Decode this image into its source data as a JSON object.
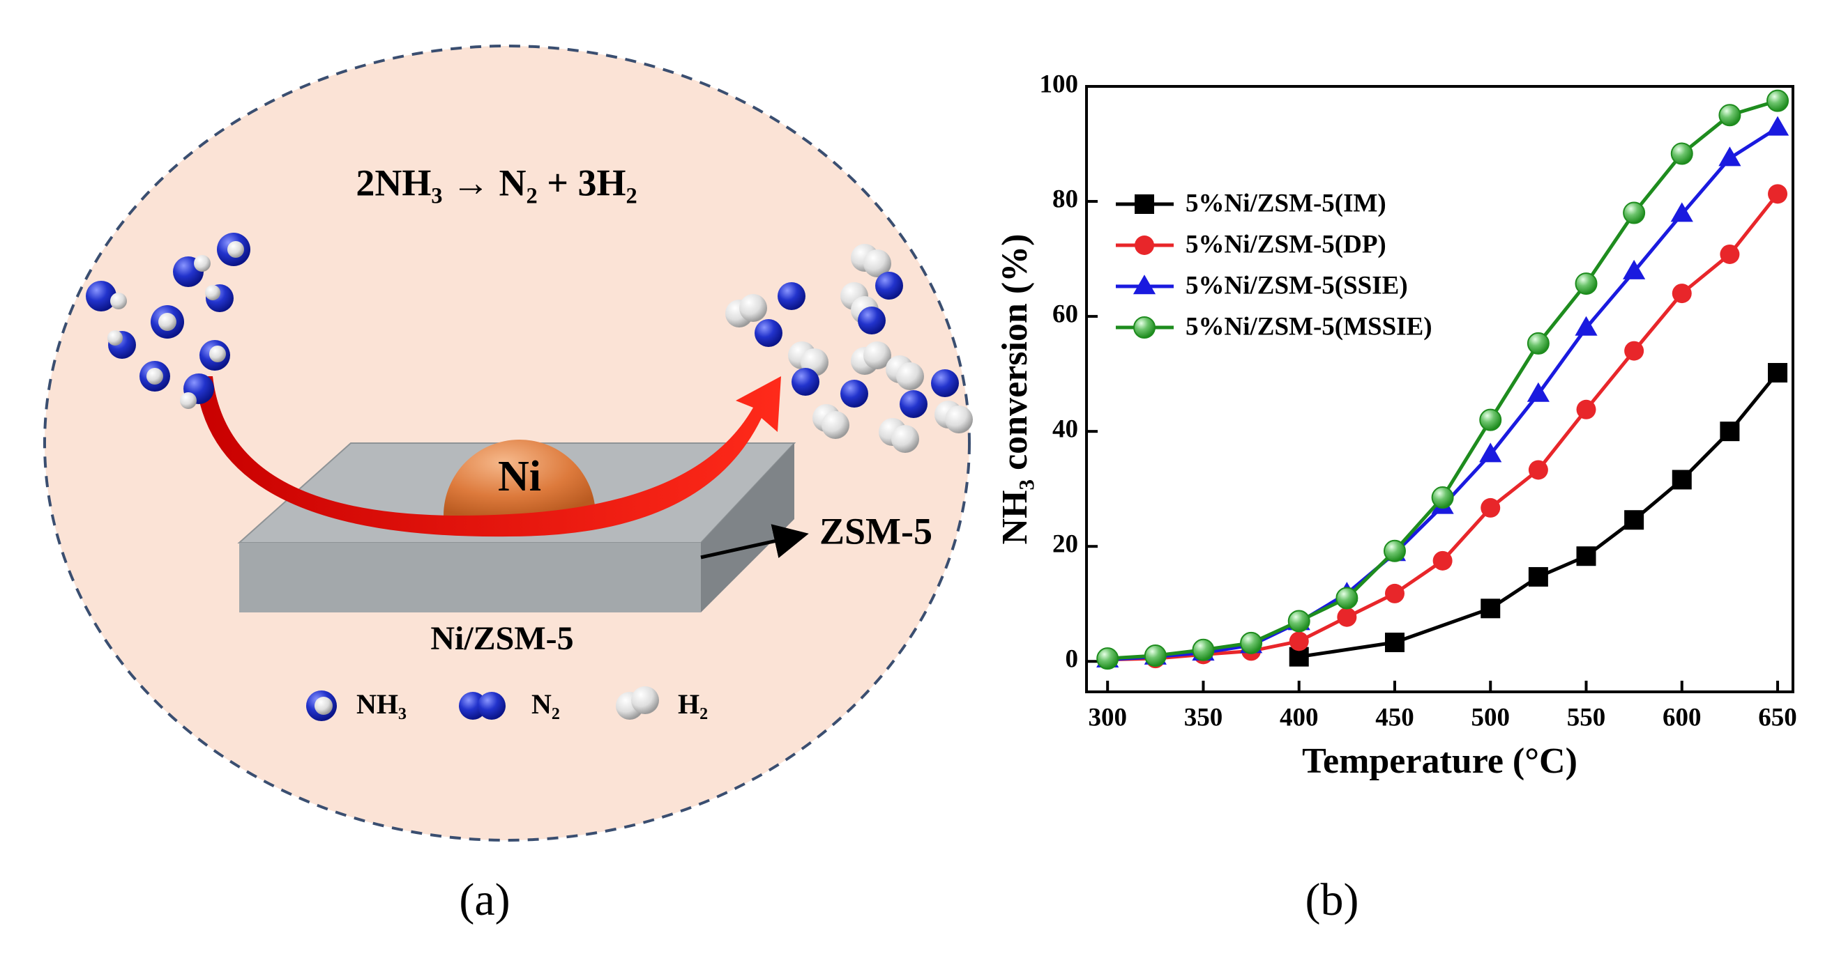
{
  "diagram": {
    "equation": "2NH₃ → N₂ + 3H₂",
    "catalyst": "Ni",
    "support": "ZSM-5",
    "label": "Ni/ZSM-5",
    "legend": [
      "NH₃",
      "N₂",
      "H₂"
    ]
  },
  "panel_labels": [
    "(a)",
    "(b)"
  ],
  "chart_data": {
    "type": "line",
    "x_label": "Temperature (°C)",
    "y_label": "NH₃ conversion (%)",
    "x": [
      300,
      325,
      350,
      375,
      400,
      425,
      450,
      475,
      500,
      525,
      550,
      575,
      600,
      625,
      650
    ],
    "series": [
      {
        "name": "5%Ni/ZSM-5(IM)",
        "color": "#000000",
        "marker": "square",
        "x": [
          400,
          450,
          500,
          525,
          550,
          575,
          600,
          625,
          650
        ],
        "values": [
          0.8,
          3.3,
          9.2,
          14.7,
          18.3,
          24.6,
          31.6,
          40,
          50.2
        ]
      },
      {
        "name": "5%Ni/ZSM-5(DP)",
        "color": "#e8262a",
        "marker": "circle",
        "values": [
          0.3,
          0.5,
          1.2,
          1.8,
          3.5,
          7.7,
          11.8,
          17.5,
          26.7,
          33.3,
          43.8,
          54,
          64,
          70.8,
          81.3
        ]
      },
      {
        "name": "5%Ni/ZSM-5(SSIE)",
        "color": "#1a1adf",
        "marker": "triangle",
        "values": [
          0.3,
          0.8,
          1.5,
          2.8,
          6.8,
          11.8,
          18.8,
          27,
          36,
          46.5,
          58,
          67.8,
          77.8,
          87.5,
          92.8
        ]
      },
      {
        "name": "5%Ni/ZSM-5(MSSIE)",
        "color": "#1e8c1e",
        "marker": "sphere",
        "values": [
          0.5,
          1,
          2,
          3.2,
          7,
          11,
          19.2,
          28.5,
          42,
          55.3,
          65.7,
          78,
          88.3,
          95,
          97.5
        ]
      }
    ],
    "xlim": [
      289,
      658
    ],
    "ylim": [
      -5.3,
      100
    ],
    "xticks": [
      300,
      350,
      400,
      450,
      500,
      550,
      600,
      650
    ],
    "yticks": [
      0,
      20,
      40,
      60,
      80,
      100
    ],
    "legend": "upper left"
  }
}
